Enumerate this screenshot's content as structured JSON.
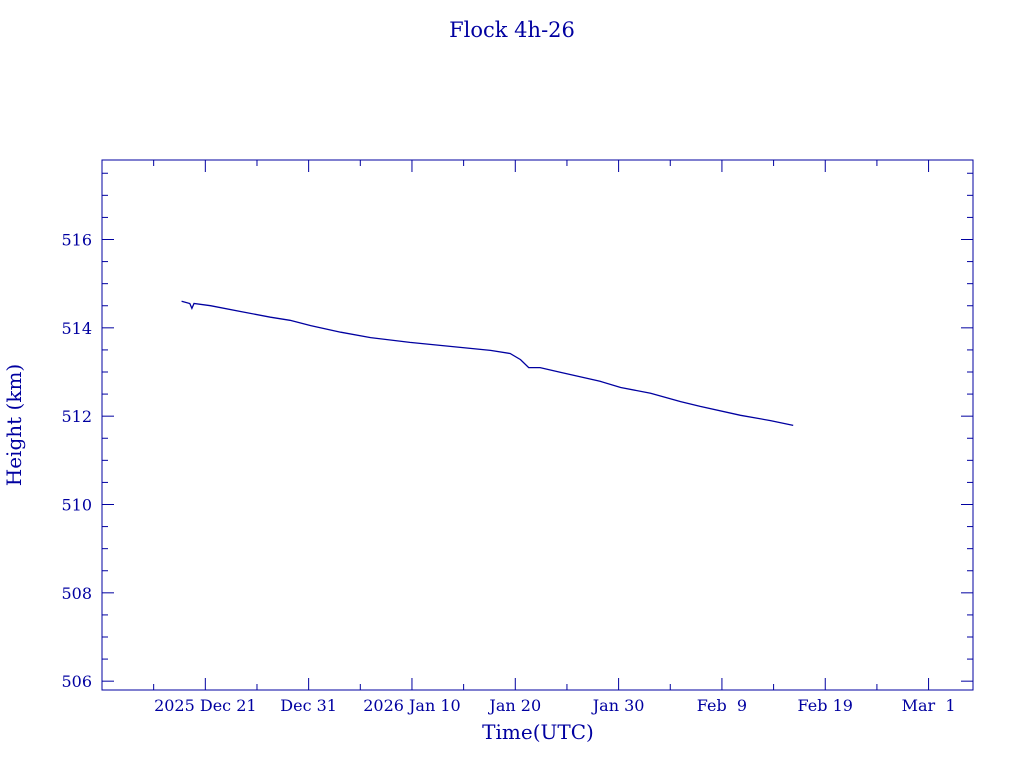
{
  "chart_data": {
    "type": "line",
    "title": "Flock 4h-26",
    "xlabel": "Time(UTC)",
    "ylabel": "Height (km)",
    "x_units": "day number counted from 2025 Nov 30 (Dec 21 = 21, Jan 10 = 41)",
    "xlim": [
      11,
      95.3
    ],
    "ylim": [
      505.8,
      517.8
    ],
    "grid": false,
    "color": "#0000a0",
    "xticks": [
      {
        "x": 21,
        "label": "2025 Dec 21"
      },
      {
        "x": 31,
        "label": "Dec 31"
      },
      {
        "x": 41,
        "label": "2026 Jan 10"
      },
      {
        "x": 51,
        "label": "Jan 20"
      },
      {
        "x": 61,
        "label": "Jan 30"
      },
      {
        "x": 71,
        "label": "Feb  9"
      },
      {
        "x": 81,
        "label": "Feb 19"
      },
      {
        "x": 91,
        "label": "Mar  1"
      }
    ],
    "yticks": [
      506,
      508,
      510,
      512,
      514,
      516
    ],
    "series": [
      {
        "name": "Flock 4h-26",
        "x": [
          18.7,
          19.5,
          19.7,
          19.9,
          21.5,
          24.4,
          27.3,
          29.2,
          31.2,
          34.1,
          37.0,
          40.8,
          44.7,
          48.6,
          50.5,
          51.5,
          52.3,
          53.4,
          55.4,
          59.2,
          61.2,
          64.1,
          67.0,
          68.9,
          72.8,
          75.7,
          77.9
        ],
        "y": [
          514.6,
          514.55,
          514.44,
          514.55,
          514.5,
          514.37,
          514.24,
          514.17,
          514.05,
          513.9,
          513.78,
          513.67,
          513.58,
          513.49,
          513.42,
          513.28,
          513.1,
          513.1,
          512.99,
          512.79,
          512.65,
          512.52,
          512.33,
          512.22,
          512.02,
          511.9,
          511.79
        ]
      }
    ]
  }
}
